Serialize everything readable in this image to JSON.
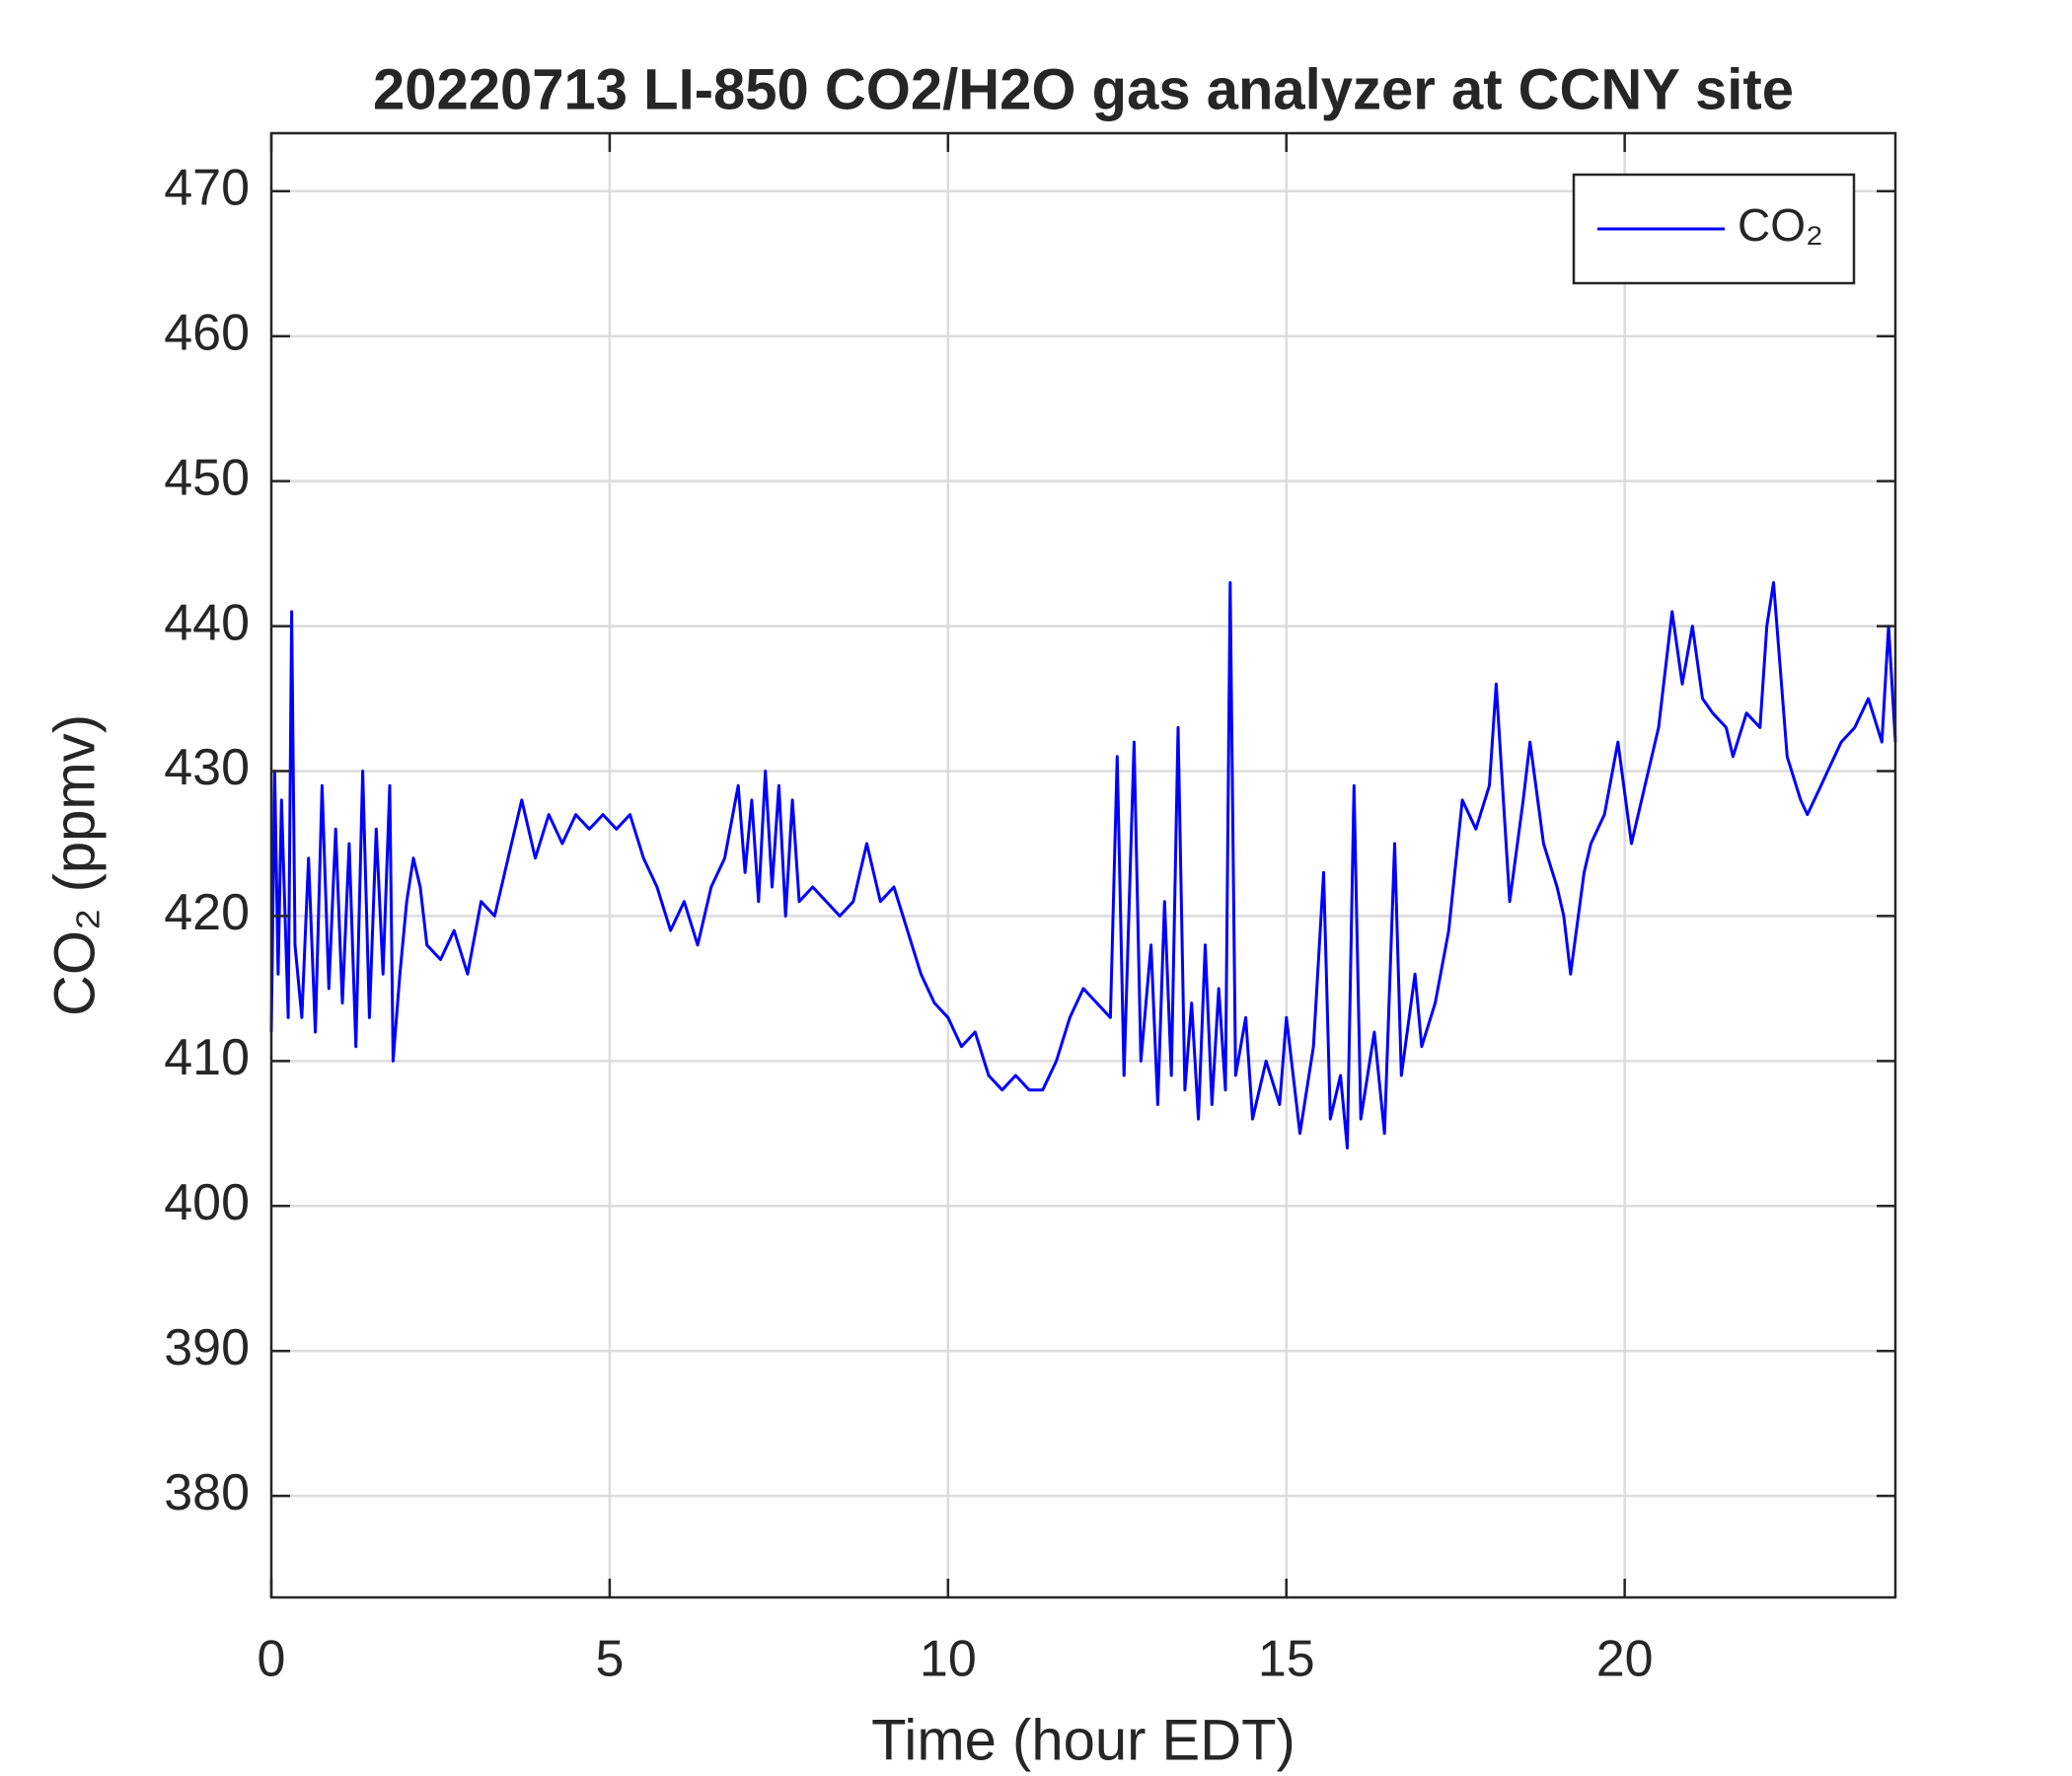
{
  "chart_data": {
    "type": "line",
    "title": "20220713 LI-850 CO2/H2O gas analyzer at CCNY site",
    "xlabel": "Time (hour EDT)",
    "ylabel": "CO₂ (ppmv)",
    "x": [
      0,
      0.05,
      0.1,
      0.15,
      0.25,
      0.3,
      0.35,
      0.45,
      0.55,
      0.65,
      0.75,
      0.85,
      0.95,
      1.05,
      1.15,
      1.25,
      1.35,
      1.45,
      1.55,
      1.65,
      1.75,
      1.8,
      1.9,
      2.0,
      2.1,
      2.2,
      2.3,
      2.5,
      2.7,
      2.9,
      3.1,
      3.3,
      3.5,
      3.7,
      3.9,
      4.1,
      4.3,
      4.5,
      4.7,
      4.9,
      5.1,
      5.3,
      5.5,
      5.7,
      5.9,
      6.1,
      6.3,
      6.5,
      6.7,
      6.9,
      7.0,
      7.1,
      7.2,
      7.3,
      7.4,
      7.5,
      7.6,
      7.7,
      7.8,
      8.0,
      8.2,
      8.4,
      8.6,
      8.8,
      9.0,
      9.2,
      9.4,
      9.6,
      9.8,
      10.0,
      10.2,
      10.4,
      10.6,
      10.8,
      11.0,
      11.2,
      11.4,
      11.6,
      11.8,
      12.0,
      12.2,
      12.4,
      12.5,
      12.6,
      12.75,
      12.85,
      13.0,
      13.1,
      13.2,
      13.3,
      13.4,
      13.5,
      13.6,
      13.7,
      13.8,
      13.9,
      14.0,
      14.1,
      14.17,
      14.25,
      14.4,
      14.5,
      14.7,
      14.9,
      15.0,
      15.2,
      15.4,
      15.55,
      15.65,
      15.8,
      15.9,
      16.0,
      16.1,
      16.3,
      16.45,
      16.6,
      16.7,
      16.9,
      17.0,
      17.2,
      17.4,
      17.6,
      17.8,
      18.0,
      18.1,
      18.3,
      18.5,
      18.6,
      18.8,
      19.0,
      19.1,
      19.2,
      19.4,
      19.5,
      19.7,
      19.9,
      20.1,
      20.3,
      20.5,
      20.7,
      20.85,
      21.0,
      21.15,
      21.3,
      21.5,
      21.6,
      21.8,
      22.0,
      22.1,
      22.2,
      22.3,
      22.4,
      22.6,
      22.7,
      22.9,
      23.0,
      23.2,
      23.4,
      23.6,
      23.8,
      23.9,
      24.0
    ],
    "series": [
      {
        "name": "CO₂",
        "color": "#0000ff",
        "values": [
          412,
          430,
          416,
          428,
          413,
          441,
          418,
          413,
          424,
          412,
          429,
          415,
          426,
          414,
          425,
          411,
          430,
          413,
          426,
          416,
          429,
          410,
          416,
          421,
          424,
          422,
          418,
          417,
          419,
          416,
          421,
          420,
          424,
          428,
          424,
          427,
          425,
          427,
          426,
          427,
          426,
          427,
          424,
          422,
          419,
          421,
          418,
          422,
          424,
          429,
          423,
          428,
          421,
          430,
          422,
          429,
          420,
          428,
          421,
          422,
          421,
          420,
          421,
          425,
          421,
          422,
          419,
          416,
          414,
          413,
          411,
          412,
          409,
          408,
          409,
          408,
          408,
          410,
          413,
          415,
          414,
          413,
          431,
          409,
          432,
          410,
          418,
          407,
          421,
          409,
          433,
          408,
          414,
          406,
          418,
          407,
          415,
          408,
          443,
          409,
          413,
          406,
          410,
          407,
          413,
          405,
          411,
          423,
          406,
          409,
          404,
          429,
          406,
          412,
          405,
          425,
          409,
          416,
          411,
          414,
          419,
          428,
          426,
          429,
          436,
          421,
          428,
          432,
          425,
          422,
          420,
          416,
          423,
          425,
          427,
          432,
          425,
          429,
          433,
          441,
          436,
          440,
          435,
          434,
          433,
          431,
          434,
          433,
          440,
          443,
          437,
          431,
          428,
          427,
          429,
          430,
          432,
          433,
          435,
          432,
          440,
          432
        ]
      }
    ],
    "xlim": [
      0,
      24
    ],
    "ylim": [
      373,
      474
    ],
    "xticks": [
      0,
      5,
      10,
      15,
      20
    ],
    "yticks": [
      380,
      390,
      400,
      410,
      420,
      430,
      440,
      450,
      460,
      470
    ],
    "grid": true,
    "legend": "upper right"
  }
}
